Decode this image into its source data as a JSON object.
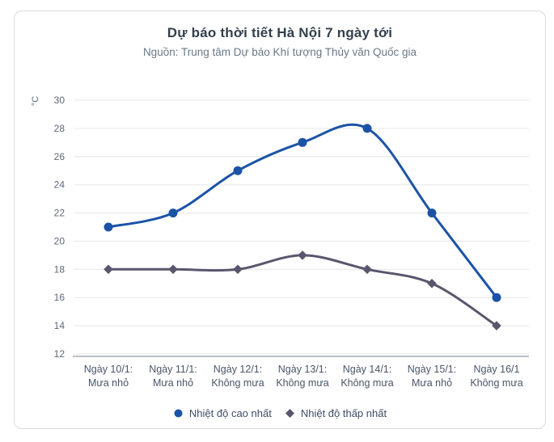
{
  "chart_data": {
    "type": "line",
    "title": "Dự báo thời tiết Hà Nội 7 ngày tới",
    "subtitle": "Nguồn: Trung tâm Dự báo Khí tượng Thủy văn Quốc gia",
    "ylabel": "°C",
    "xlabel": "",
    "ylim": [
      12,
      30
    ],
    "ytick_step": 2,
    "grid": true,
    "legend_position": "bottom",
    "categories": [
      {
        "date": "Ngày 10/1:",
        "weather": "Mưa nhỏ"
      },
      {
        "date": "Ngày 11/1:",
        "weather": "Mưa nhỏ"
      },
      {
        "date": "Ngày 12/1:",
        "weather": "Không mưa"
      },
      {
        "date": "Ngày 13/1:",
        "weather": "Không mưa"
      },
      {
        "date": "Ngày 14/1:",
        "weather": "Không mưa"
      },
      {
        "date": "Ngày 15/1:",
        "weather": "Mưa nhỏ"
      },
      {
        "date": "Ngày 16/1",
        "weather": "Không mưa"
      }
    ],
    "series": [
      {
        "name": "Nhiệt độ cao nhất",
        "marker": "circle",
        "color": "#1b53a6",
        "values": [
          21,
          22,
          25,
          27,
          28,
          22,
          16
        ]
      },
      {
        "name": "Nhiệt độ thấp nhất",
        "marker": "diamond",
        "color": "#5b566e",
        "values": [
          18,
          18,
          18,
          19,
          18,
          17,
          14
        ]
      }
    ],
    "colors": {
      "gridline": "#e5e6e8",
      "axis_line": "#a3aab6",
      "tick_label": "#5d6877",
      "x_label": "#4a5568",
      "title": "#33404d",
      "subtitle": "#6b7886",
      "legend_text": "#3f4d66"
    }
  }
}
